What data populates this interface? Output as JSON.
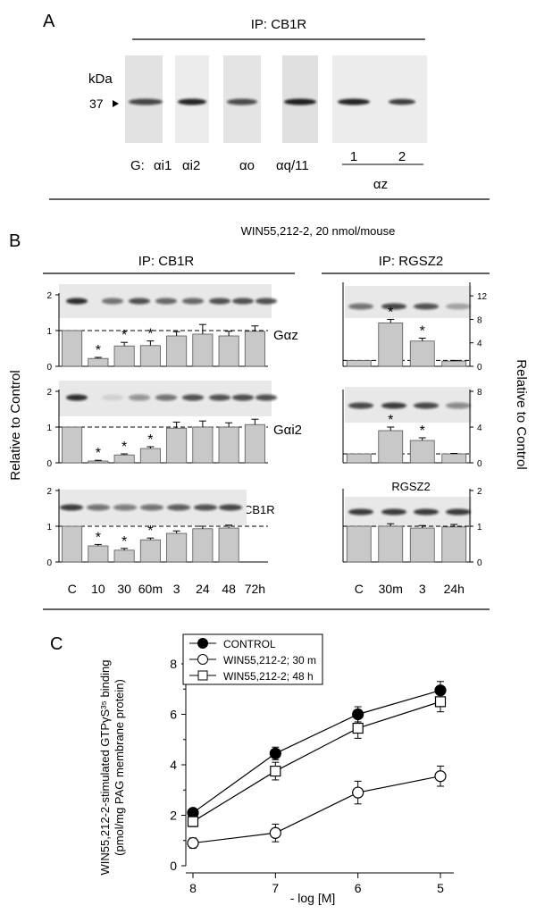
{
  "panel_a": {
    "label": "A",
    "title": "IP: CB1R",
    "kda_label": "kDa",
    "marker": "37",
    "g_prefix": "G:",
    "lanes": [
      "αi1",
      "αi2",
      "αo",
      "αq/11"
    ],
    "az_lanes": [
      "1",
      "2"
    ],
    "az_label": "αz"
  },
  "panel_b": {
    "label": "B",
    "treatment": "WIN55,212-2, 20 nmol/mouse",
    "left_title": "IP: CB1R",
    "right_title": "IP: RGSZ2",
    "y_label_left": "Relative to Control",
    "y_label_right": "Relative to Control",
    "row_labels": [
      "Gαz",
      "Gαi2",
      "CB1R"
    ],
    "rgsz2_label": "RGSZ2",
    "left_x_labels": [
      "C",
      "10",
      "30",
      "60m",
      "3",
      "24",
      "48",
      "72h"
    ],
    "right_x_labels": [
      "C",
      "30m",
      "3",
      "24h"
    ],
    "left_ticks": [
      "0",
      "1",
      "2"
    ],
    "right_ticks_gaz": [
      "0",
      "4",
      "8",
      "12"
    ],
    "right_ticks_gai2": [
      "0",
      "4",
      "8"
    ],
    "right_ticks_rgsz2": [
      "0",
      "1",
      "2"
    ],
    "star": "*"
  },
  "panel_c": {
    "label": "C",
    "ylabel_line1": "WIN55,212-2-stimulated GTPγS³⁵ binding",
    "ylabel_line2": "(pmol/mg PAG membrane protein)",
    "xlabel": "- log [M]",
    "legend": [
      "CONTROL",
      "WIN55,212-2; 30 m",
      "WIN55,212-2; 48 h"
    ],
    "y_ticks": [
      "0",
      "2",
      "4",
      "6",
      "8"
    ],
    "x_ticks": [
      "8",
      "7",
      "6",
      "5"
    ]
  },
  "chart_data": [
    {
      "type": "bar",
      "categories": [
        "C",
        "10",
        "30",
        "60m",
        "3",
        "24",
        "48",
        "72h"
      ],
      "series": [
        {
          "name": "Gαz",
          "values": [
            1.0,
            0.22,
            0.57,
            0.58,
            0.85,
            0.9,
            0.85,
            0.98
          ],
          "errors": [
            0,
            0.03,
            0.1,
            0.13,
            0.12,
            0.27,
            0.13,
            0.15
          ]
        }
      ],
      "ylim": [
        0,
        2
      ]
    },
    {
      "type": "bar",
      "categories": [
        "C",
        "10",
        "30",
        "60m",
        "3",
        "24",
        "48",
        "72h"
      ],
      "series": [
        {
          "name": "Gαi2",
          "values": [
            1.0,
            0.05,
            0.22,
            0.4,
            0.97,
            1.0,
            1.0,
            1.07
          ],
          "errors": [
            0,
            0.02,
            0.03,
            0.05,
            0.17,
            0.17,
            0.12,
            0.15
          ]
        }
      ],
      "ylim": [
        0,
        2
      ]
    },
    {
      "type": "bar",
      "categories": [
        "C",
        "10",
        "30",
        "60m",
        "3",
        "24",
        "48",
        "72h"
      ],
      "series": [
        {
          "name": "CB1R",
          "values": [
            1.0,
            0.45,
            0.33,
            0.62,
            0.8,
            0.93,
            0.95,
            0
          ],
          "errors": [
            0,
            0.04,
            0.05,
            0.05,
            0.07,
            0.07,
            0.08,
            0
          ]
        }
      ],
      "ylim": [
        0,
        2
      ]
    },
    {
      "type": "bar",
      "categories": [
        "C",
        "30m",
        "3",
        "24h"
      ],
      "series": [
        {
          "name": "Gαz",
          "values": [
            1.0,
            7.4,
            4.3,
            0.9
          ],
          "errors": [
            0,
            0.6,
            0.5,
            0.1
          ]
        }
      ],
      "ylim": [
        0,
        14
      ]
    },
    {
      "type": "bar",
      "categories": [
        "C",
        "30m",
        "3",
        "24h"
      ],
      "series": [
        {
          "name": "Gαi2",
          "values": [
            1.0,
            3.6,
            2.5,
            1.0
          ],
          "errors": [
            0,
            0.4,
            0.3,
            0.05
          ]
        }
      ],
      "ylim": [
        0,
        8
      ]
    },
    {
      "type": "bar",
      "categories": [
        "C",
        "30m",
        "3",
        "24h"
      ],
      "series": [
        {
          "name": "RGSZ2",
          "values": [
            1.0,
            1.0,
            0.95,
            0.98
          ],
          "errors": [
            0,
            0.07,
            0.07,
            0.07
          ]
        }
      ],
      "ylim": [
        0,
        2
      ]
    },
    {
      "type": "line",
      "x": [
        8,
        7,
        6,
        5
      ],
      "xlabel": "- log [M]",
      "ylabel": "WIN55,212-2-stimulated GTPγS³⁵ binding (pmol/mg PAG membrane protein)",
      "ylim": [
        0,
        8
      ],
      "series": [
        {
          "name": "CONTROL",
          "values": [
            2.1,
            4.45,
            6.0,
            6.95
          ],
          "errors": [
            0.15,
            0.25,
            0.3,
            0.35
          ]
        },
        {
          "name": "WIN55,212-2; 30 m",
          "values": [
            0.9,
            1.3,
            2.9,
            3.55
          ],
          "errors": [
            0.2,
            0.35,
            0.45,
            0.4
          ]
        },
        {
          "name": "WIN55,212-2; 48 h",
          "values": [
            1.75,
            3.75,
            5.45,
            6.5
          ],
          "errors": [
            0.2,
            0.35,
            0.4,
            0.4
          ]
        }
      ]
    }
  ]
}
